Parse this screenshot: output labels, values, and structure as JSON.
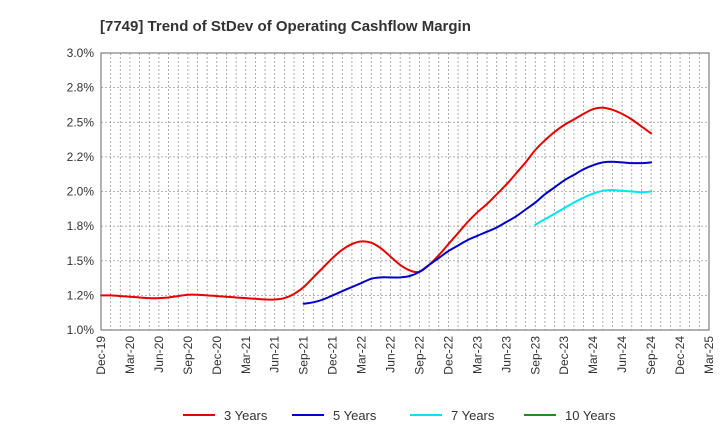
{
  "chart_data": {
    "type": "line",
    "title": "[7749]  Trend of StDev of Operating Cashflow Margin",
    "xlabel": "",
    "ylabel": "",
    "ylim": [
      1.0,
      3.0
    ],
    "yticks": [
      "1.0%",
      "1.2%",
      "1.5%",
      "1.8%",
      "2.0%",
      "2.2%",
      "2.5%",
      "2.8%",
      "3.0%"
    ],
    "xticks": [
      "Dec-19",
      "Mar-20",
      "Jun-20",
      "Sep-20",
      "Dec-20",
      "Mar-21",
      "Jun-21",
      "Sep-21",
      "Dec-21",
      "Mar-22",
      "Jun-22",
      "Sep-22",
      "Dec-22",
      "Mar-23",
      "Jun-23",
      "Sep-23",
      "Dec-23",
      "Mar-24",
      "Jun-24",
      "Sep-24",
      "Dec-24",
      "Mar-25"
    ],
    "x_start": "2019-12",
    "x_end": "2025-03",
    "grid": true,
    "legend_position": "bottom",
    "series": [
      {
        "name": "3 Years",
        "color": "#e60000",
        "x": [
          "2019-12",
          "2020-01",
          "2020-02",
          "2020-03",
          "2020-04",
          "2020-05",
          "2020-06",
          "2020-07",
          "2020-08",
          "2020-09",
          "2020-10",
          "2020-11",
          "2020-12",
          "2021-01",
          "2021-02",
          "2021-03",
          "2021-04",
          "2021-05",
          "2021-06",
          "2021-07",
          "2021-08",
          "2021-09",
          "2021-10",
          "2021-11",
          "2021-12",
          "2022-01",
          "2022-02",
          "2022-03",
          "2022-04",
          "2022-05",
          "2022-06",
          "2022-07",
          "2022-08",
          "2022-09",
          "2022-10",
          "2022-11",
          "2022-12",
          "2023-01",
          "2023-02",
          "2023-03",
          "2023-04",
          "2023-05",
          "2023-06",
          "2023-07",
          "2023-08",
          "2023-09",
          "2023-10",
          "2023-11",
          "2023-12",
          "2024-01",
          "2024-02",
          "2024-03",
          "2024-04",
          "2024-05",
          "2024-06",
          "2024-07",
          "2024-08",
          "2024-09"
        ],
        "values": [
          1.25,
          1.25,
          1.245,
          1.24,
          1.235,
          1.23,
          1.23,
          1.235,
          1.245,
          1.255,
          1.255,
          1.25,
          1.245,
          1.24,
          1.235,
          1.23,
          1.225,
          1.22,
          1.22,
          1.23,
          1.26,
          1.31,
          1.38,
          1.45,
          1.52,
          1.58,
          1.62,
          1.64,
          1.63,
          1.59,
          1.53,
          1.47,
          1.43,
          1.42,
          1.47,
          1.54,
          1.62,
          1.7,
          1.78,
          1.85,
          1.91,
          1.98,
          2.05,
          2.13,
          2.21,
          2.3,
          2.37,
          2.43,
          2.48,
          2.52,
          2.56,
          2.595,
          2.605,
          2.59,
          2.56,
          2.52,
          2.47,
          2.42
        ],
        "dash": false
      },
      {
        "name": "5 Years",
        "color": "#0000cc",
        "x": [
          "2021-09",
          "2021-10",
          "2021-11",
          "2021-12",
          "2022-01",
          "2022-02",
          "2022-03",
          "2022-04",
          "2022-05",
          "2022-06",
          "2022-07",
          "2022-08",
          "2022-09",
          "2022-10",
          "2022-11",
          "2022-12",
          "2023-01",
          "2023-02",
          "2023-03",
          "2023-04",
          "2023-05",
          "2023-06",
          "2023-07",
          "2023-08",
          "2023-09",
          "2023-10",
          "2023-11",
          "2023-12",
          "2024-01",
          "2024-02",
          "2024-03",
          "2024-04",
          "2024-05",
          "2024-06",
          "2024-07",
          "2024-08",
          "2024-09"
        ],
        "values": [
          1.19,
          1.2,
          1.22,
          1.25,
          1.28,
          1.31,
          1.34,
          1.37,
          1.38,
          1.38,
          1.38,
          1.39,
          1.42,
          1.47,
          1.52,
          1.57,
          1.61,
          1.65,
          1.68,
          1.71,
          1.74,
          1.78,
          1.82,
          1.87,
          1.92,
          1.98,
          2.03,
          2.08,
          2.12,
          2.16,
          2.19,
          2.21,
          2.215,
          2.21,
          2.205,
          2.205,
          2.21
        ],
        "dash": false
      },
      {
        "name": "7 Years",
        "color": "#00e5ee",
        "x": [
          "2023-09",
          "2023-10",
          "2023-11",
          "2023-12",
          "2024-01",
          "2024-02",
          "2024-03",
          "2024-04",
          "2024-05",
          "2024-06",
          "2024-07",
          "2024-08",
          "2024-09"
        ],
        "values": [
          1.76,
          1.8,
          1.84,
          1.88,
          1.92,
          1.955,
          1.985,
          2.005,
          2.01,
          2.005,
          2.0,
          1.995,
          2.0
        ],
        "dash": false
      },
      {
        "name": "10 Years",
        "color": "#228b22",
        "x": [],
        "values": [],
        "dash": false
      }
    ]
  }
}
